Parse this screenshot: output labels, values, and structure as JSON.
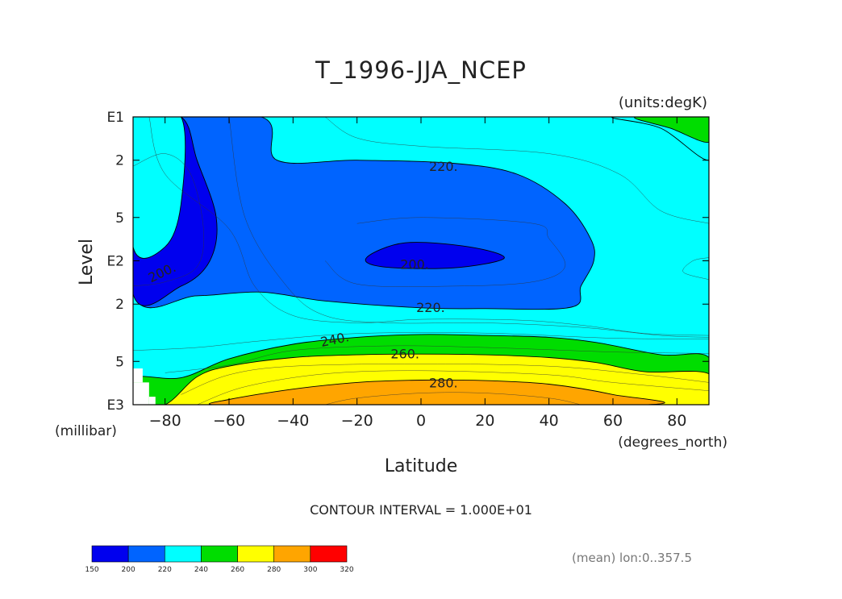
{
  "chart_data": {
    "type": "heatmap",
    "title": "T_1996-JJA_NCEP",
    "units_label": "(units:degK)",
    "xlabel": "Latitude",
    "x_units_label": "(degrees_north)",
    "ylabel": "Level",
    "y_units_label": "(millibar)",
    "xlim": [
      -90,
      90
    ],
    "x_ticks": [
      -80,
      -60,
      -40,
      -20,
      0,
      20,
      40,
      60,
      80
    ],
    "y_scale": "log",
    "ylim_mb": [
      1000,
      10
    ],
    "y_ticks": [
      {
        "mb": 10,
        "label": "E1"
      },
      {
        "mb": 20,
        "label": "2"
      },
      {
        "mb": 50,
        "label": "5"
      },
      {
        "mb": 100,
        "label": "E2"
      },
      {
        "mb": 200,
        "label": "2"
      },
      {
        "mb": 500,
        "label": "5"
      },
      {
        "mb": 1000,
        "label": "E3"
      }
    ],
    "contour_interval_text": "CONTOUR INTERVAL = 1.000E+01",
    "footnote": "(mean) lon:0..357.5",
    "contour_labels": [
      {
        "text": "200.",
        "lat": -81,
        "mb": 120
      },
      {
        "text": "200.",
        "lat": -2,
        "mb": 105
      },
      {
        "text": "220.",
        "lat": 7,
        "mb": 22
      },
      {
        "text": "220.",
        "lat": 3,
        "mb": 210
      },
      {
        "text": "240.",
        "lat": -27,
        "mb": 350
      },
      {
        "text": "260.",
        "lat": -5,
        "mb": 440
      },
      {
        "text": "280.",
        "lat": 7,
        "mb": 700
      }
    ],
    "colorbar": {
      "levels": [
        150,
        200,
        220,
        240,
        260,
        280,
        300,
        320
      ],
      "colors": [
        "#0000ee",
        "#0064ff",
        "#00ffff",
        "#00dd00",
        "#ffff00",
        "#ffa500",
        "#ff0000"
      ]
    },
    "regions": [
      {
        "band": "200-220",
        "color": "#0064ff",
        "outline": [
          [
            -90,
            10
          ],
          [
            -50,
            10
          ],
          [
            -45,
            20
          ],
          [
            -20,
            20
          ],
          [
            10,
            21
          ],
          [
            30,
            25
          ],
          [
            45,
            40
          ],
          [
            53,
            70
          ],
          [
            54,
            100
          ],
          [
            50,
            150
          ],
          [
            47,
            210
          ],
          [
            20,
            215
          ],
          [
            0,
            212
          ],
          [
            -30,
            190
          ],
          [
            -50,
            165
          ],
          [
            -70,
            175
          ],
          [
            -90,
            170
          ]
        ]
      },
      {
        "band": "150-200",
        "color": "#0000ee",
        "outline": [
          [
            -90,
            10
          ],
          [
            -75,
            10
          ],
          [
            -70,
            20
          ],
          [
            -64,
            50
          ],
          [
            -66,
            100
          ],
          [
            -75,
            150
          ],
          [
            -90,
            170
          ]
        ]
      },
      {
        "band": "150-200",
        "color": "#0000ee",
        "outline": [
          [
            -17,
            95
          ],
          [
            -5,
            75
          ],
          [
            15,
            80
          ],
          [
            26,
            96
          ],
          [
            10,
            112
          ],
          [
            -12,
            110
          ]
        ]
      },
      {
        "band": "220-240",
        "color": "#00ffff",
        "outline": [
          [
            -90,
            10
          ],
          [
            -75,
            10
          ],
          [
            -75,
            40
          ],
          [
            -80,
            80
          ],
          [
            -90,
            80
          ]
        ]
      },
      {
        "band": "220-240",
        "color": "#00ffff",
        "outline": [
          [
            60,
            10
          ],
          [
            90,
            10
          ],
          [
            90,
            20
          ],
          [
            75,
            12
          ]
        ]
      },
      {
        "band": "240-260",
        "color": "#00dd00",
        "outline": [
          [
            -90,
            1000
          ],
          [
            -90,
            650
          ],
          [
            -75,
            650
          ],
          [
            -60,
            480
          ],
          [
            -40,
            380
          ],
          [
            -20,
            340
          ],
          [
            0,
            325
          ],
          [
            20,
            330
          ],
          [
            40,
            340
          ],
          [
            55,
            370
          ],
          [
            75,
            450
          ],
          [
            90,
            470
          ],
          [
            90,
            1000
          ]
        ]
      },
      {
        "band": "240-260",
        "color": "#00dd00",
        "outline": [
          [
            67,
            10
          ],
          [
            90,
            10
          ],
          [
            90,
            15
          ],
          [
            78,
            12
          ]
        ]
      },
      {
        "band": "260-280",
        "color": "#ffff00",
        "outline": [
          [
            -90,
            1000
          ],
          [
            -80,
            1000
          ],
          [
            -70,
            640
          ],
          [
            -60,
            540
          ],
          [
            -40,
            470
          ],
          [
            -20,
            450
          ],
          [
            0,
            445
          ],
          [
            20,
            450
          ],
          [
            40,
            470
          ],
          [
            55,
            510
          ],
          [
            70,
            590
          ],
          [
            90,
            610
          ],
          [
            90,
            1000
          ]
        ]
      },
      {
        "band": "280-300",
        "color": "#ffa500",
        "outline": [
          [
            -40,
            1000
          ],
          [
            -65,
            1000
          ],
          [
            -60,
            920
          ],
          [
            -40,
            780
          ],
          [
            -20,
            700
          ],
          [
            0,
            675
          ],
          [
            20,
            680
          ],
          [
            40,
            720
          ],
          [
            60,
            850
          ],
          [
            70,
            1000
          ]
        ]
      }
    ],
    "missing_cells": [
      {
        "lat": [
          -90,
          -87
        ],
        "mb": [
          560,
          700
        ]
      },
      {
        "lat": [
          -90,
          -85
        ],
        "mb": [
          700,
          1000
        ]
      },
      {
        "lat": [
          -85,
          -83
        ],
        "mb": [
          880,
          1000
        ]
      }
    ],
    "thin_contours": [
      [
        [
          -90,
          22
        ],
        [
          -80,
          18
        ],
        [
          -72,
          25
        ],
        [
          -68,
          60
        ],
        [
          -70,
          110
        ],
        [
          -80,
          140
        ],
        [
          -90,
          150
        ]
      ],
      [
        [
          -85,
          10
        ],
        [
          -80,
          25
        ],
        [
          -60,
          60
        ],
        [
          -52,
          150
        ],
        [
          -40,
          240
        ],
        [
          -20,
          270
        ],
        [
          0,
          255
        ],
        [
          30,
          258
        ],
        [
          50,
          280
        ],
        [
          70,
          320
        ],
        [
          90,
          330
        ]
      ],
      [
        [
          -60,
          10
        ],
        [
          -55,
          50
        ],
        [
          -42,
          150
        ],
        [
          -30,
          240
        ],
        [
          -10,
          270
        ],
        [
          20,
          270
        ],
        [
          50,
          290
        ],
        [
          75,
          330
        ],
        [
          90,
          340
        ]
      ],
      [
        [
          -20,
          55
        ],
        [
          0,
          50
        ],
        [
          35,
          55
        ],
        [
          40,
          70
        ],
        [
          45,
          110
        ],
        [
          35,
          140
        ],
        [
          10,
          150
        ],
        [
          -20,
          145
        ],
        [
          -30,
          100
        ]
      ],
      [
        [
          -30,
          10
        ],
        [
          -20,
          14
        ],
        [
          0,
          16
        ],
        [
          40,
          18
        ],
        [
          62,
          25
        ],
        [
          75,
          45
        ],
        [
          90,
          55
        ]
      ],
      [
        [
          -90,
          420
        ],
        [
          -70,
          400
        ],
        [
          -50,
          360
        ],
        [
          -20,
          320
        ],
        [
          20,
          318
        ],
        [
          60,
          345
        ],
        [
          90,
          350
        ]
      ],
      [
        [
          -80,
          600
        ],
        [
          -60,
          530
        ],
        [
          -40,
          420
        ],
        [
          -10,
          390
        ],
        [
          20,
          400
        ],
        [
          60,
          430
        ],
        [
          90,
          440
        ]
      ],
      [
        [
          -75,
          850
        ],
        [
          -60,
          620
        ],
        [
          -40,
          540
        ],
        [
          0,
          520
        ],
        [
          40,
          540
        ],
        [
          70,
          620
        ],
        [
          90,
          700
        ]
      ],
      [
        [
          -70,
          1000
        ],
        [
          -55,
          750
        ],
        [
          -30,
          610
        ],
        [
          0,
          580
        ],
        [
          40,
          620
        ],
        [
          60,
          700
        ],
        [
          90,
          800
        ]
      ],
      [
        [
          -30,
          1000
        ],
        [
          -20,
          900
        ],
        [
          0,
          830
        ],
        [
          20,
          830
        ],
        [
          40,
          900
        ],
        [
          50,
          1000
        ]
      ],
      [
        [
          90,
          95
        ],
        [
          85,
          100
        ],
        [
          82,
          120
        ],
        [
          90,
          135
        ]
      ]
    ]
  }
}
